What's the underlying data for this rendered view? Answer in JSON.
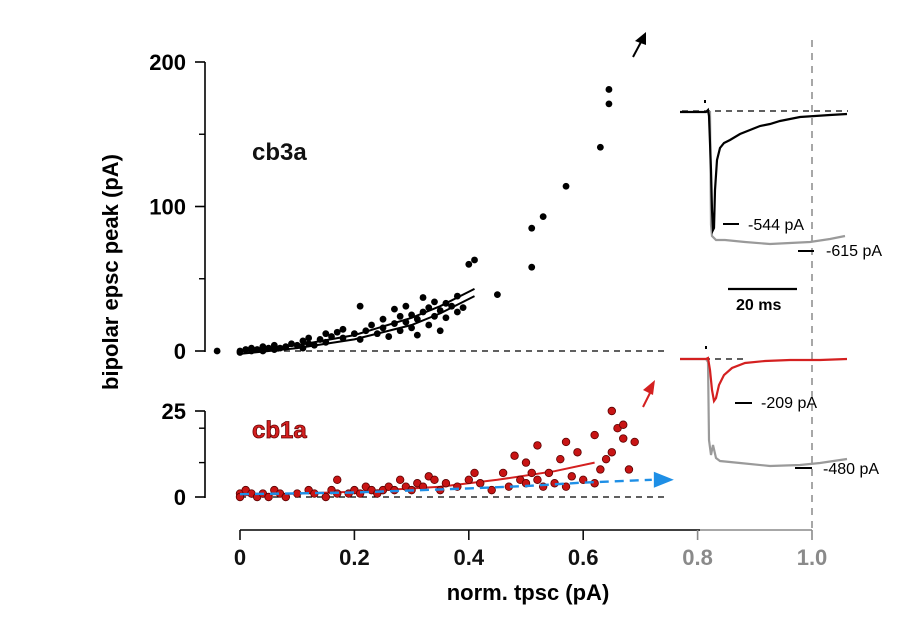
{
  "chart_data": [
    {
      "type": "scatter",
      "panel": "top",
      "label": "cb3a",
      "label_color": "#111111",
      "ylabel": "bipolar epsc peak (pA)",
      "xlabel": "norm. tpsc (pA)",
      "ylim": [
        0,
        200
      ],
      "xlim": [
        0,
        1.0
      ],
      "y_ticks": [
        "0",
        "100",
        "200"
      ],
      "y_tick_values": [
        0,
        100,
        200
      ],
      "y_minor_ticks": [
        50,
        150
      ],
      "baseline": 0,
      "point_color": "#000000",
      "points": [
        [
          -0.04,
          0
        ],
        [
          0.0,
          -1
        ],
        [
          0.0,
          0
        ],
        [
          0.01,
          1
        ],
        [
          0.02,
          0
        ],
        [
          0.02,
          2
        ],
        [
          0.03,
          1
        ],
        [
          0.04,
          0
        ],
        [
          0.04,
          3
        ],
        [
          0.05,
          2
        ],
        [
          0.06,
          1
        ],
        [
          0.06,
          4
        ],
        [
          0.07,
          2
        ],
        [
          0.08,
          3
        ],
        [
          0.09,
          5
        ],
        [
          0.1,
          4
        ],
        [
          0.11,
          2
        ],
        [
          0.11,
          7
        ],
        [
          0.12,
          5
        ],
        [
          0.12,
          9
        ],
        [
          0.13,
          4
        ],
        [
          0.14,
          8
        ],
        [
          0.15,
          12
        ],
        [
          0.15,
          6
        ],
        [
          0.16,
          10
        ],
        [
          0.17,
          13
        ],
        [
          0.18,
          9
        ],
        [
          0.18,
          15
        ],
        [
          0.2,
          12
        ],
        [
          0.21,
          8
        ],
        [
          0.21,
          31
        ],
        [
          0.22,
          14
        ],
        [
          0.23,
          18
        ],
        [
          0.24,
          12
        ],
        [
          0.25,
          16
        ],
        [
          0.25,
          22
        ],
        [
          0.26,
          10
        ],
        [
          0.27,
          19
        ],
        [
          0.27,
          29
        ],
        [
          0.28,
          14
        ],
        [
          0.28,
          24
        ],
        [
          0.29,
          20
        ],
        [
          0.29,
          31
        ],
        [
          0.3,
          16
        ],
        [
          0.3,
          25
        ],
        [
          0.31,
          11
        ],
        [
          0.31,
          22
        ],
        [
          0.32,
          27
        ],
        [
          0.32,
          37
        ],
        [
          0.33,
          18
        ],
        [
          0.33,
          30
        ],
        [
          0.34,
          24
        ],
        [
          0.34,
          34
        ],
        [
          0.35,
          14
        ],
        [
          0.35,
          28
        ],
        [
          0.36,
          23
        ],
        [
          0.36,
          33
        ],
        [
          0.37,
          31
        ],
        [
          0.38,
          27
        ],
        [
          0.38,
          38
        ],
        [
          0.39,
          30
        ],
        [
          0.4,
          60
        ],
        [
          0.41,
          63
        ],
        [
          0.45,
          39
        ],
        [
          0.51,
          58
        ],
        [
          0.51,
          85
        ],
        [
          0.53,
          93
        ],
        [
          0.57,
          114
        ],
        [
          0.63,
          141
        ],
        [
          0.645,
          171
        ],
        [
          0.645,
          181
        ]
      ],
      "fit_lines": [
        {
          "name": "fit-1",
          "color": "#000000",
          "points": [
            [
              0.0,
              0
            ],
            [
              0.1,
              4
            ],
            [
              0.2,
              11
            ],
            [
              0.3,
              23
            ],
            [
              0.35,
              31
            ],
            [
              0.41,
              43
            ]
          ]
        },
        {
          "name": "fit-2",
          "color": "#000000",
          "points": [
            [
              0.0,
              -2
            ],
            [
              0.1,
              2
            ],
            [
              0.2,
              8
            ],
            [
              0.3,
              18
            ],
            [
              0.35,
              26
            ],
            [
              0.41,
              38
            ]
          ]
        }
      ],
      "arrow": {
        "color": "#000000"
      }
    },
    {
      "type": "scatter",
      "panel": "bottom",
      "label": "cb1a",
      "label_color": "#d42020",
      "ylim": [
        0,
        25
      ],
      "y_ticks": [
        "0",
        "25"
      ],
      "y_tick_values": [
        0,
        25
      ],
      "y_minor_ticks": [
        10,
        20
      ],
      "x_ticks": [
        "0",
        "0.2",
        "0.4",
        "0.6",
        "0.8",
        "1.0"
      ],
      "x_tick_values": [
        0,
        0.2,
        0.4,
        0.6,
        0.8,
        1.0
      ],
      "x_tick_colors": [
        "#111111",
        "#111111",
        "#111111",
        "#111111",
        "#8a8a8a",
        "#8a8a8a"
      ],
      "baseline": 0,
      "point_color": "#c81414",
      "points": [
        [
          0.0,
          1
        ],
        [
          0.0,
          0
        ],
        [
          0.01,
          2
        ],
        [
          0.02,
          1
        ],
        [
          0.03,
          0
        ],
        [
          0.04,
          1
        ],
        [
          0.05,
          0
        ],
        [
          0.06,
          2
        ],
        [
          0.07,
          1
        ],
        [
          0.08,
          0
        ],
        [
          0.1,
          1
        ],
        [
          0.12,
          2
        ],
        [
          0.13,
          1
        ],
        [
          0.15,
          0
        ],
        [
          0.16,
          2
        ],
        [
          0.17,
          1
        ],
        [
          0.17,
          5
        ],
        [
          0.19,
          1
        ],
        [
          0.2,
          2
        ],
        [
          0.21,
          1
        ],
        [
          0.22,
          3
        ],
        [
          0.23,
          2
        ],
        [
          0.24,
          1
        ],
        [
          0.25,
          2
        ],
        [
          0.26,
          3
        ],
        [
          0.27,
          2
        ],
        [
          0.28,
          5
        ],
        [
          0.29,
          3
        ],
        [
          0.3,
          2
        ],
        [
          0.31,
          4
        ],
        [
          0.32,
          3
        ],
        [
          0.33,
          6
        ],
        [
          0.34,
          5
        ],
        [
          0.35,
          2
        ],
        [
          0.36,
          4
        ],
        [
          0.38,
          3
        ],
        [
          0.4,
          5
        ],
        [
          0.41,
          7
        ],
        [
          0.42,
          4
        ],
        [
          0.44,
          2
        ],
        [
          0.46,
          7
        ],
        [
          0.47,
          3
        ],
        [
          0.48,
          12
        ],
        [
          0.49,
          5
        ],
        [
          0.5,
          4
        ],
        [
          0.5,
          10
        ],
        [
          0.51,
          7
        ],
        [
          0.52,
          5
        ],
        [
          0.52,
          15
        ],
        [
          0.53,
          3
        ],
        [
          0.54,
          7
        ],
        [
          0.55,
          4
        ],
        [
          0.56,
          11
        ],
        [
          0.57,
          3
        ],
        [
          0.57,
          16
        ],
        [
          0.58,
          6
        ],
        [
          0.59,
          13
        ],
        [
          0.6,
          5
        ],
        [
          0.62,
          18
        ],
        [
          0.62,
          4
        ],
        [
          0.63,
          8
        ],
        [
          0.64,
          11
        ],
        [
          0.65,
          25
        ],
        [
          0.66,
          20
        ],
        [
          0.67,
          17
        ],
        [
          0.67,
          21
        ],
        [
          0.68,
          8
        ],
        [
          0.69,
          16
        ],
        [
          0.65,
          13
        ]
      ],
      "fit_lines": [
        {
          "name": "fit-red",
          "color": "#d42020",
          "points": [
            [
              0.0,
              0.5
            ],
            [
              0.2,
              1.5
            ],
            [
              0.35,
              3
            ],
            [
              0.45,
              5
            ],
            [
              0.55,
              7.5
            ],
            [
              0.62,
              10
            ]
          ]
        }
      ],
      "blue_line": {
        "color": "#1e8fe6",
        "points": [
          [
            0.0,
            0.8
          ],
          [
            0.2,
            1.3
          ],
          [
            0.4,
            2.5
          ],
          [
            0.5,
            3.2
          ],
          [
            0.6,
            4.2
          ],
          [
            0.72,
            5
          ]
        ]
      },
      "arrow": {
        "color": "#d42020"
      }
    }
  ],
  "traces": {
    "top": {
      "black_label": "-544 pA",
      "gray_label": "-615 pA"
    },
    "bottom": {
      "red_label": "-209 pA",
      "gray_label": "-480 pA"
    },
    "scale_bar_label": "20 ms"
  },
  "colors": {
    "gray_trace": "#9a9a9a",
    "gray_axis": "#8a8a8a",
    "black": "#000000",
    "red": "#d42020",
    "blue": "#1e8fe6"
  }
}
